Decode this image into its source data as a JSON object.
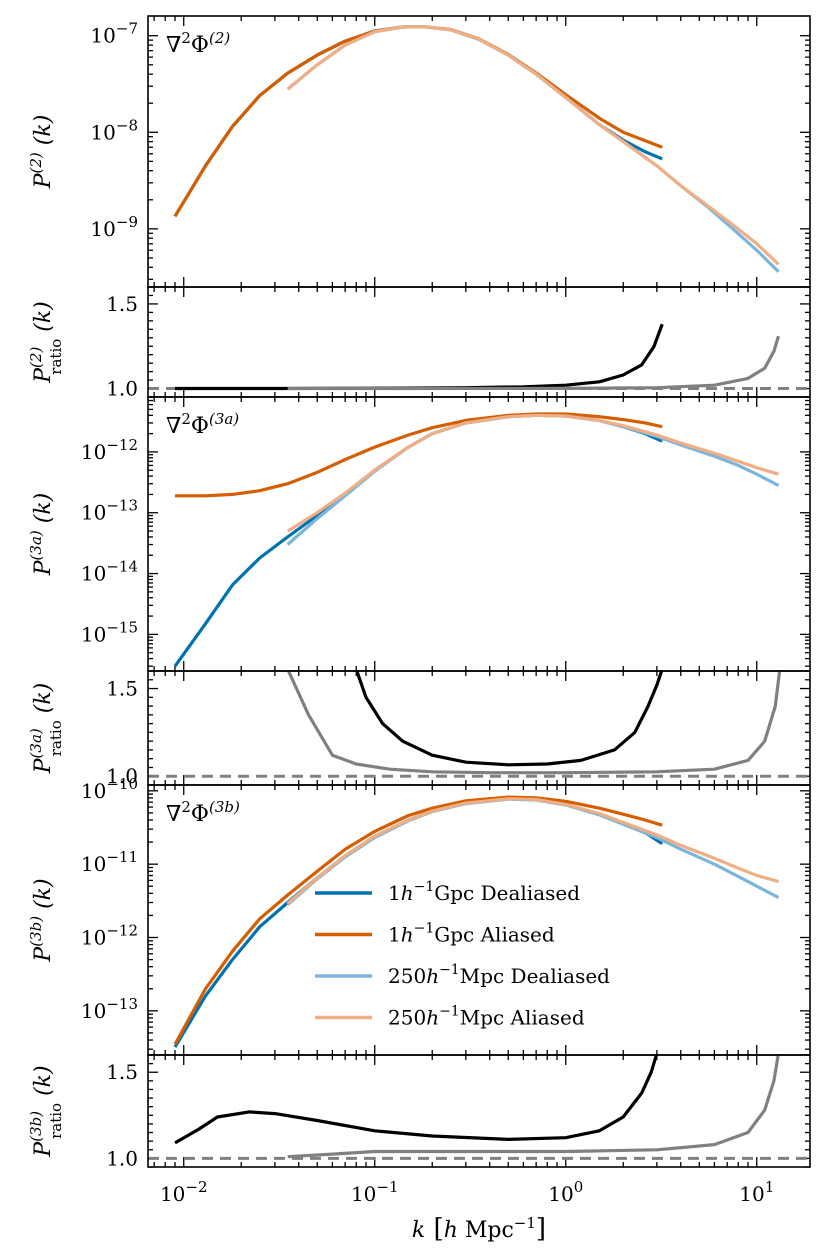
{
  "colors": {
    "dealiased_1gpc": "#0072b2",
    "aliased_1gpc": "#d55e00",
    "dealiased_250": "#7bb5dc",
    "aliased_250": "#f0ae84",
    "ratio_1gpc": "#000000",
    "ratio_250": "#808080",
    "reference": "#808080"
  },
  "chart_data": [
    {
      "type": "line",
      "panel": "P2",
      "yscale": "log",
      "xscale": "log",
      "xlim": [
        0.0065,
        19
      ],
      "ylim": [
        2.5e-10,
        1.6e-07
      ],
      "ylabel": "P(2) (k)",
      "annotation": "∇²Φ(2)",
      "yticks": [
        {
          "value": 1e-07,
          "base": "10",
          "exp": "−7"
        },
        {
          "value": 1e-08,
          "base": "10",
          "exp": "−8"
        },
        {
          "value": 1e-09,
          "base": "10",
          "exp": "−9"
        }
      ],
      "series": [
        {
          "name": "1h⁻¹Gpc Dealiased",
          "color_key": "dealiased_1gpc",
          "x": [
            0.009,
            0.013,
            0.018,
            0.025,
            0.035,
            0.05,
            0.07,
            0.1,
            0.14,
            0.18,
            0.25,
            0.35,
            0.5,
            0.7,
            1.0,
            1.5,
            2.0,
            2.6,
            3.2
          ],
          "y": [
            1.35e-09,
            4.5e-09,
            1.15e-08,
            2.4e-08,
            4.1e-08,
            6.3e-08,
            8.8e-08,
            1.12e-07,
            1.23e-07,
            1.24e-07,
            1.15e-07,
            9.2e-08,
            6.3e-08,
            4e-08,
            2.3e-08,
            1.2e-08,
            8.3e-09,
            6.3e-09,
            5.3e-09
          ]
        },
        {
          "name": "1h⁻¹Gpc Aliased",
          "color_key": "aliased_1gpc",
          "x": [
            0.009,
            0.013,
            0.018,
            0.025,
            0.035,
            0.05,
            0.07,
            0.1,
            0.14,
            0.18,
            0.25,
            0.35,
            0.5,
            0.7,
            1.0,
            1.5,
            2.0,
            2.6,
            3.2
          ],
          "y": [
            1.35e-09,
            4.5e-09,
            1.15e-08,
            2.4e-08,
            4.1e-08,
            6.3e-08,
            8.8e-08,
            1.12e-07,
            1.23e-07,
            1.24e-07,
            1.16e-07,
            9.3e-08,
            6.4e-08,
            4.1e-08,
            2.45e-08,
            1.4e-08,
            1e-08,
            8.2e-09,
            7e-09
          ]
        },
        {
          "name": "250h⁻¹Mpc Dealiased",
          "color_key": "dealiased_250",
          "x": [
            0.035,
            0.05,
            0.07,
            0.1,
            0.14,
            0.18,
            0.25,
            0.35,
            0.5,
            0.7,
            1.0,
            1.5,
            2.0,
            3.0,
            4.0,
            5.5,
            7.5,
            10,
            13
          ],
          "y": [
            2.8e-08,
            5e-08,
            8e-08,
            1.1e-07,
            1.23e-07,
            1.24e-07,
            1.15e-07,
            9.2e-08,
            6.3e-08,
            4e-08,
            2.3e-08,
            1.2e-08,
            8e-09,
            4.5e-09,
            2.8e-09,
            1.7e-09,
            1e-09,
            6e-10,
            3.6e-10
          ]
        },
        {
          "name": "250h⁻¹Mpc Aliased",
          "color_key": "aliased_250",
          "x": [
            0.035,
            0.05,
            0.07,
            0.1,
            0.14,
            0.18,
            0.25,
            0.35,
            0.5,
            0.7,
            1.0,
            1.5,
            2.0,
            3.0,
            4.0,
            5.5,
            7.5,
            10,
            13
          ],
          "y": [
            2.8e-08,
            5e-08,
            8e-08,
            1.1e-07,
            1.23e-07,
            1.24e-07,
            1.15e-07,
            9.2e-08,
            6.3e-08,
            4e-08,
            2.3e-08,
            1.2e-08,
            8e-09,
            4.5e-09,
            2.8e-09,
            1.75e-09,
            1.1e-09,
            7e-10,
            4.3e-10
          ]
        }
      ]
    },
    {
      "type": "line",
      "panel": "R2",
      "yscale": "linear",
      "xscale": "log",
      "xlim": [
        0.0065,
        19
      ],
      "ylim": [
        0.95,
        1.6
      ],
      "ylabel": "P(2)ratio (k)",
      "yticks": [
        {
          "value": 1.5,
          "label": "1.5"
        },
        {
          "value": 1.0,
          "label": "1.0"
        }
      ],
      "reference": 1.0,
      "series": [
        {
          "name": "ratio 1h⁻¹Gpc",
          "color_key": "ratio_1gpc",
          "x": [
            0.009,
            0.03,
            0.1,
            0.3,
            0.6,
            1.0,
            1.5,
            2.0,
            2.5,
            2.9,
            3.2
          ],
          "y": [
            1.0,
            1.0,
            1.002,
            1.005,
            1.01,
            1.02,
            1.04,
            1.08,
            1.14,
            1.25,
            1.38
          ]
        },
        {
          "name": "ratio 250h⁻¹Mpc",
          "color_key": "ratio_250",
          "x": [
            0.035,
            0.1,
            1.0,
            3.0,
            6.0,
            9.0,
            11.0,
            12.3,
            13
          ],
          "y": [
            1.0,
            1.0,
            1.001,
            1.005,
            1.02,
            1.06,
            1.12,
            1.22,
            1.31
          ]
        }
      ]
    },
    {
      "type": "line",
      "panel": "P3a",
      "yscale": "log",
      "xscale": "log",
      "xlim": [
        0.0065,
        19
      ],
      "ylim": [
        2.5e-16,
        8e-12
      ],
      "ylabel": "P(3a) (k)",
      "annotation": "∇²Φ(3a)",
      "yticks": [
        {
          "value": 1e-12,
          "base": "10",
          "exp": "−12"
        },
        {
          "value": 1e-13,
          "base": "10",
          "exp": "−13"
        },
        {
          "value": 1e-14,
          "base": "10",
          "exp": "−14"
        },
        {
          "value": 1e-15,
          "base": "10",
          "exp": "−15"
        }
      ],
      "series": [
        {
          "name": "1h⁻¹Gpc Dealiased",
          "color_key": "dealiased_1gpc",
          "x": [
            0.009,
            0.013,
            0.018,
            0.025,
            0.035,
            0.05,
            0.07,
            0.1,
            0.15,
            0.2,
            0.3,
            0.5,
            0.7,
            1.0,
            1.5,
            2.0,
            2.6,
            3.2
          ],
          "y": [
            3e-16,
            1.5e-15,
            6.5e-15,
            1.8e-14,
            4e-14,
            9e-14,
            2e-13,
            5e-13,
            1.2e-12,
            2e-12,
            3e-12,
            3.8e-12,
            4e-12,
            3.9e-12,
            3.3e-12,
            2.6e-12,
            2e-12,
            1.5e-12
          ]
        },
        {
          "name": "1h⁻¹Gpc Aliased",
          "color_key": "aliased_1gpc",
          "x": [
            0.009,
            0.013,
            0.018,
            0.025,
            0.035,
            0.05,
            0.07,
            0.1,
            0.15,
            0.2,
            0.3,
            0.5,
            0.7,
            1.0,
            1.5,
            2.0,
            2.6,
            3.2
          ],
          "y": [
            1.9e-13,
            1.9e-13,
            2e-13,
            2.3e-13,
            3e-13,
            4.6e-13,
            7.5e-13,
            1.2e-12,
            1.9e-12,
            2.5e-12,
            3.3e-12,
            4e-12,
            4.2e-12,
            4.2e-12,
            3.8e-12,
            3.4e-12,
            3e-12,
            2.6e-12
          ]
        },
        {
          "name": "250h⁻¹Mpc Dealiased",
          "color_key": "dealiased_250",
          "x": [
            0.035,
            0.05,
            0.07,
            0.1,
            0.15,
            0.2,
            0.3,
            0.5,
            0.7,
            1.0,
            1.5,
            2.0,
            3.0,
            4.0,
            6.0,
            8.0,
            10,
            13
          ],
          "y": [
            3e-14,
            8e-14,
            1.9e-13,
            4.8e-13,
            1.2e-12,
            2e-12,
            3e-12,
            3.8e-12,
            4e-12,
            3.9e-12,
            3.3e-12,
            2.6e-12,
            1.8e-12,
            1.3e-12,
            8.5e-13,
            6e-13,
            4.3e-13,
            2.8e-13
          ]
        },
        {
          "name": "250h⁻¹Mpc Aliased",
          "color_key": "aliased_250",
          "x": [
            0.035,
            0.05,
            0.07,
            0.1,
            0.15,
            0.2,
            0.3,
            0.5,
            0.7,
            1.0,
            1.5,
            2.0,
            3.0,
            4.0,
            6.0,
            8.0,
            10,
            13
          ],
          "y": [
            5e-14,
            1e-13,
            2.1e-13,
            5e-13,
            1.2e-12,
            2e-12,
            3e-12,
            3.8e-12,
            4e-12,
            3.9e-12,
            3.3e-12,
            2.7e-12,
            1.9e-12,
            1.4e-12,
            9.5e-13,
            7e-13,
            5.5e-13,
            4.3e-13
          ]
        }
      ]
    },
    {
      "type": "line",
      "panel": "R3a",
      "yscale": "linear",
      "xscale": "log",
      "xlim": [
        0.0065,
        19
      ],
      "ylim": [
        0.95,
        1.6
      ],
      "ylabel": "P(3a)ratio (k)",
      "yticks": [
        {
          "value": 1.5,
          "label": "1.5"
        },
        {
          "value": 1.0,
          "label": "1.0"
        }
      ],
      "reference": 1.0,
      "series": [
        {
          "name": "ratio 1h⁻¹Gpc",
          "color_key": "ratio_1gpc",
          "x": [
            0.08,
            0.09,
            0.11,
            0.14,
            0.2,
            0.3,
            0.5,
            0.8,
            1.2,
            1.8,
            2.3,
            2.7,
            3.0,
            3.2
          ],
          "y": [
            1.61,
            1.45,
            1.3,
            1.2,
            1.12,
            1.08,
            1.065,
            1.07,
            1.09,
            1.15,
            1.25,
            1.4,
            1.52,
            1.61
          ]
        },
        {
          "name": "ratio 250h⁻¹Mpc",
          "color_key": "ratio_250",
          "x": [
            0.035,
            0.045,
            0.06,
            0.08,
            0.12,
            0.2,
            0.4,
            1.0,
            3.0,
            6.0,
            9.0,
            11.0,
            12.5,
            13.2
          ],
          "y": [
            1.61,
            1.35,
            1.12,
            1.07,
            1.04,
            1.025,
            1.02,
            1.02,
            1.025,
            1.04,
            1.09,
            1.2,
            1.4,
            1.61
          ]
        }
      ]
    },
    {
      "type": "line",
      "panel": "P3b",
      "yscale": "log",
      "xscale": "log",
      "xlim": [
        0.0065,
        19
      ],
      "ylim": [
        2.5e-14,
        1.2e-10
      ],
      "ylabel": "P(3b) (k)",
      "annotation": "∇²Φ(3b)",
      "yticks": [
        {
          "value": 1e-10,
          "base": "10",
          "exp": "−10"
        },
        {
          "value": 1e-11,
          "base": "10",
          "exp": "−11"
        },
        {
          "value": 1e-12,
          "base": "10",
          "exp": "−12"
        },
        {
          "value": 1e-13,
          "base": "10",
          "exp": "−13"
        }
      ],
      "series": [
        {
          "name": "1h⁻¹Gpc Dealiased",
          "color_key": "dealiased_1gpc",
          "x": [
            0.009,
            0.013,
            0.018,
            0.025,
            0.035,
            0.05,
            0.07,
            0.1,
            0.15,
            0.2,
            0.3,
            0.5,
            0.7,
            1.0,
            1.5,
            2.0,
            2.6,
            3.2
          ],
          "y": [
            3.2e-14,
            1.6e-13,
            5e-13,
            1.4e-12,
            3e-12,
            6.5e-12,
            1.3e-11,
            2.4e-11,
            4e-11,
            5.3e-11,
            6.8e-11,
            7.8e-11,
            7.6e-11,
            6.5e-11,
            4.8e-11,
            3.6e-11,
            2.7e-11,
            1.9e-11
          ]
        },
        {
          "name": "1h⁻¹Gpc Aliased",
          "color_key": "aliased_1gpc",
          "x": [
            0.009,
            0.013,
            0.018,
            0.025,
            0.035,
            0.05,
            0.07,
            0.1,
            0.15,
            0.2,
            0.3,
            0.5,
            0.7,
            1.0,
            1.5,
            2.0,
            2.6,
            3.2
          ],
          "y": [
            3.5e-14,
            2e-13,
            6.5e-13,
            1.8e-12,
            3.8e-12,
            8e-12,
            1.6e-11,
            2.8e-11,
            4.6e-11,
            5.8e-11,
            7.3e-11,
            8.2e-11,
            8e-11,
            7.2e-11,
            5.8e-11,
            4.8e-11,
            4e-11,
            3.4e-11
          ]
        },
        {
          "name": "250h⁻¹Mpc Dealiased",
          "color_key": "dealiased_250",
          "x": [
            0.035,
            0.05,
            0.07,
            0.1,
            0.15,
            0.2,
            0.3,
            0.5,
            0.7,
            1.0,
            1.5,
            2.0,
            3.0,
            4.0,
            6.0,
            8.0,
            10,
            13
          ],
          "y": [
            2.8e-12,
            6.3e-12,
            1.25e-11,
            2.3e-11,
            3.9e-11,
            5.2e-11,
            6.7e-11,
            7.7e-11,
            7.5e-11,
            6.4e-11,
            4.7e-11,
            3.5e-11,
            2.3e-11,
            1.6e-11,
            1e-11,
            6.8e-12,
            5e-12,
            3.5e-12
          ]
        },
        {
          "name": "250h⁻¹Mpc Aliased",
          "color_key": "aliased_250",
          "x": [
            0.035,
            0.05,
            0.07,
            0.1,
            0.15,
            0.2,
            0.3,
            0.5,
            0.7,
            1.0,
            1.5,
            2.0,
            3.0,
            4.0,
            6.0,
            8.0,
            10,
            13
          ],
          "y": [
            2.9e-12,
            6.5e-12,
            1.3e-11,
            2.4e-11,
            4e-11,
            5.3e-11,
            6.8e-11,
            7.8e-11,
            7.6e-11,
            6.5e-11,
            4.9e-11,
            3.7e-11,
            2.5e-11,
            1.8e-11,
            1.2e-11,
            8.8e-12,
            7e-12,
            5.8e-12
          ]
        }
      ]
    },
    {
      "type": "line",
      "panel": "R3b",
      "yscale": "linear",
      "xscale": "log",
      "xlim": [
        0.0065,
        19
      ],
      "ylim": [
        0.95,
        1.6
      ],
      "ylabel": "P(3b)ratio (k)",
      "yticks": [
        {
          "value": 1.5,
          "label": "1.5"
        },
        {
          "value": 1.0,
          "label": "1.0"
        }
      ],
      "reference": 1.0,
      "xlabel": "k [h Mpc⁻¹]",
      "xticks": [
        {
          "value": 0.01,
          "base": "10",
          "exp": "−2"
        },
        {
          "value": 0.1,
          "base": "10",
          "exp": "−1"
        },
        {
          "value": 1,
          "base": "10",
          "exp": "0"
        },
        {
          "value": 10,
          "base": "10",
          "exp": "1"
        }
      ],
      "series": [
        {
          "name": "ratio 1h⁻¹Gpc",
          "color_key": "ratio_1gpc",
          "x": [
            0.009,
            0.012,
            0.015,
            0.022,
            0.03,
            0.05,
            0.1,
            0.2,
            0.5,
            1.0,
            1.5,
            2.0,
            2.5,
            2.8,
            3.0
          ],
          "y": [
            1.09,
            1.17,
            1.24,
            1.27,
            1.26,
            1.22,
            1.16,
            1.13,
            1.11,
            1.12,
            1.16,
            1.24,
            1.38,
            1.5,
            1.61
          ]
        },
        {
          "name": "ratio 250h⁻¹Mpc",
          "color_key": "ratio_250",
          "x": [
            0.035,
            0.06,
            0.1,
            0.3,
            1.0,
            3.0,
            6.0,
            9.0,
            11.0,
            12.3,
            13.0
          ],
          "y": [
            1.01,
            1.025,
            1.04,
            1.04,
            1.04,
            1.05,
            1.08,
            1.15,
            1.28,
            1.45,
            1.61
          ]
        }
      ]
    }
  ],
  "legend": {
    "entries": [
      {
        "label": "1h⁻¹Gpc Dealiased",
        "color_key": "dealiased_1gpc"
      },
      {
        "label": "1h⁻¹Gpc Aliased",
        "color_key": "aliased_1gpc"
      },
      {
        "label": "250h⁻¹Mpc Dealiased",
        "color_key": "dealiased_250"
      },
      {
        "label": "250h⁻¹Mpc Aliased",
        "color_key": "aliased_250"
      }
    ]
  }
}
